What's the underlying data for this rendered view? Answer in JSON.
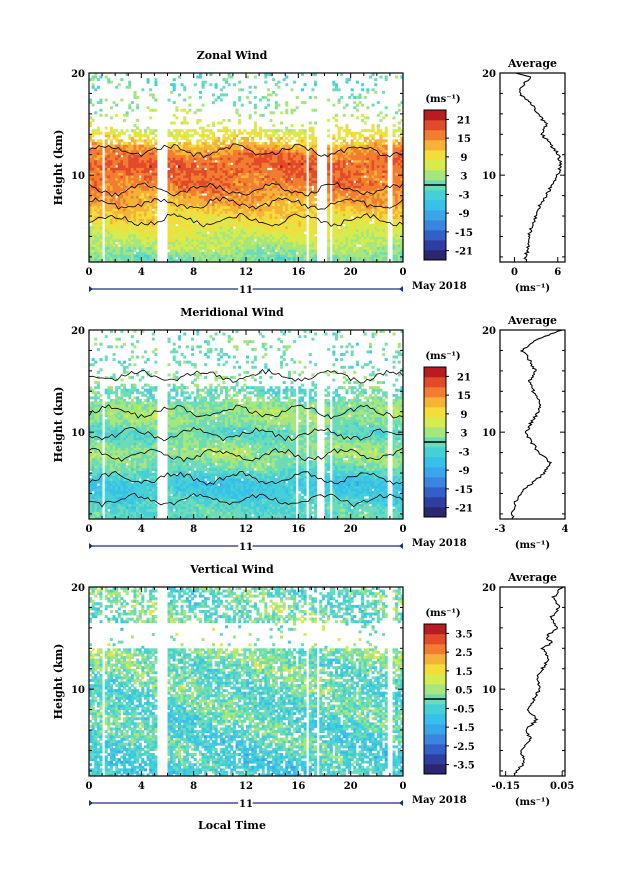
{
  "colors": {
    "colormap": [
      "#2b2670",
      "#2e3ea0",
      "#3360c8",
      "#3a86df",
      "#3aa6ea",
      "#36c0ea",
      "#45d0d8",
      "#6cdcb8",
      "#a6e67c",
      "#d6ec4e",
      "#f4dc3a",
      "#f6b236",
      "#f27d30",
      "#e34a2a",
      "#b81c20"
    ],
    "contour": "#000000",
    "axis": "#000000"
  },
  "chart_data": [
    {
      "type": "heatmap",
      "title": "Zonal Wind",
      "ylabel": "Height (km)",
      "xlabel": "",
      "x_ticks": [
        "0",
        "4",
        "8",
        "12",
        "16",
        "20",
        "0"
      ],
      "y_ticks": [
        "10",
        "20"
      ],
      "day_label": "11",
      "date_label": "May 2018",
      "ylim": [
        1.5,
        20
      ],
      "xlim": [
        0,
        24
      ],
      "colorbar": {
        "unit": "(ms⁻¹)",
        "ticks": [
          "21",
          "15",
          "9",
          "3",
          "-3",
          "-9",
          "-15",
          "-21"
        ],
        "range": [
          -24,
          24
        ]
      },
      "gaps": [
        [
          1.0,
          1.2
        ],
        [
          5.2,
          6.0
        ],
        [
          16.6,
          16.8
        ],
        [
          17.4,
          18.1
        ],
        [
          18.3,
          18.6
        ],
        [
          22.8,
          23.2
        ]
      ],
      "profile_points": [
        [
          2,
          1
        ],
        [
          3,
          4
        ],
        [
          4,
          6
        ],
        [
          5,
          8
        ],
        [
          6,
          10
        ],
        [
          7,
          12
        ],
        [
          8,
          14
        ],
        [
          9,
          16
        ],
        [
          10,
          17
        ],
        [
          11,
          18
        ],
        [
          12,
          16
        ],
        [
          13,
          12
        ],
        [
          14,
          8
        ],
        [
          15,
          6
        ],
        [
          16,
          4
        ],
        [
          17,
          2
        ],
        [
          18,
          1
        ],
        [
          19,
          -1
        ]
      ],
      "average": {
        "title": "Average",
        "xlabel": "(ms⁻¹)",
        "x_ticks": [
          "0",
          "6"
        ],
        "y_ticks": [
          "10",
          "20"
        ],
        "xlim": [
          -2,
          7
        ],
        "profile": [
          [
            1.5,
            1.5
          ],
          [
            2,
            1.6
          ],
          [
            3,
            1.9
          ],
          [
            4,
            2.0
          ],
          [
            5,
            2.4
          ],
          [
            6,
            3.0
          ],
          [
            7,
            3.4
          ],
          [
            8,
            4.4
          ],
          [
            9,
            5.2
          ],
          [
            10,
            6.0
          ],
          [
            11,
            6.4
          ],
          [
            12,
            6.1
          ],
          [
            13,
            5.0
          ],
          [
            14,
            3.8
          ],
          [
            15,
            4.4
          ],
          [
            16,
            3.2
          ],
          [
            17,
            2.4
          ],
          [
            18,
            0.6
          ],
          [
            19,
            1.4
          ],
          [
            19.6,
            2.2
          ],
          [
            20,
            0.4
          ]
        ]
      }
    },
    {
      "type": "heatmap",
      "title": "Meridional Wind",
      "ylabel": "Height (km)",
      "xlabel": "",
      "x_ticks": [
        "0",
        "4",
        "8",
        "12",
        "16",
        "20",
        "0"
      ],
      "y_ticks": [
        "10",
        "20"
      ],
      "day_label": "11",
      "date_label": "May 2018",
      "ylim": [
        1.5,
        20
      ],
      "xlim": [
        0,
        24
      ],
      "colorbar": {
        "unit": "(ms⁻¹)",
        "ticks": [
          "21",
          "15",
          "9",
          "3",
          "-3",
          "-9",
          "-15",
          "-21"
        ],
        "range": [
          -24,
          24
        ]
      },
      "gaps": [
        [
          1.0,
          1.2
        ],
        [
          5.2,
          6.0
        ],
        [
          15.7,
          15.9
        ],
        [
          16.6,
          16.8
        ],
        [
          17.4,
          18.0
        ],
        [
          18.3,
          18.6
        ],
        [
          22.8,
          23.2
        ]
      ],
      "profile_points": [
        [
          2,
          -1
        ],
        [
          3,
          -2
        ],
        [
          4,
          -4
        ],
        [
          5,
          -5
        ],
        [
          6,
          -2
        ],
        [
          7,
          1
        ],
        [
          8,
          3
        ],
        [
          9,
          1
        ],
        [
          10,
          -1
        ],
        [
          11,
          2
        ],
        [
          12,
          3
        ],
        [
          13,
          1
        ],
        [
          14,
          -1
        ],
        [
          15,
          2
        ],
        [
          16,
          1
        ],
        [
          17,
          -1
        ],
        [
          18,
          1
        ],
        [
          19,
          0
        ]
      ],
      "average": {
        "title": "Average",
        "xlabel": "(ms⁻¹)",
        "x_ticks": [
          "-3",
          "4"
        ],
        "y_ticks": [
          "10",
          "20"
        ],
        "xlim": [
          -3,
          4
        ],
        "profile": [
          [
            1.5,
            -1.6
          ],
          [
            2,
            -1.8
          ],
          [
            3,
            -1.4
          ],
          [
            4,
            -0.8
          ],
          [
            5,
            0.4
          ],
          [
            6,
            1.8
          ],
          [
            7,
            2.4
          ],
          [
            8,
            1.2
          ],
          [
            9,
            0.4
          ],
          [
            10,
            -0.2
          ],
          [
            11,
            0.4
          ],
          [
            12,
            1.2
          ],
          [
            13,
            1.4
          ],
          [
            14,
            0.6
          ],
          [
            15,
            0.2
          ],
          [
            16,
            0.8
          ],
          [
            17,
            0.2
          ],
          [
            18,
            -0.6
          ],
          [
            19,
            0.8
          ],
          [
            19.7,
            2.8
          ],
          [
            20,
            3.6
          ]
        ]
      }
    },
    {
      "type": "heatmap",
      "title": "Vertical Wind",
      "ylabel": "Height (km)",
      "xlabel": "Local Time",
      "x_ticks": [
        "0",
        "4",
        "8",
        "12",
        "16",
        "20",
        "0"
      ],
      "y_ticks": [
        "10",
        "20"
      ],
      "day_label": "11",
      "date_label": "May 2018",
      "ylim": [
        1.5,
        20
      ],
      "xlim": [
        0,
        24
      ],
      "colorbar": {
        "unit": "(ms⁻¹)",
        "ticks": [
          "3.5",
          "2.5",
          "1.5",
          "0.5",
          "-0.5",
          "-1.5",
          "-2.5",
          "-3.5"
        ],
        "range": [
          -4,
          4
        ]
      },
      "gaps": [
        [
          1.0,
          1.2
        ],
        [
          5.2,
          6.0
        ],
        [
          16.6,
          16.8
        ],
        [
          17.4,
          17.6
        ],
        [
          22.8,
          23.2
        ]
      ],
      "profile_points": [
        [
          2,
          -0.6
        ],
        [
          4,
          -0.4
        ],
        [
          6,
          -0.3
        ],
        [
          8,
          -0.2
        ],
        [
          10,
          -0.1
        ],
        [
          12,
          0.0
        ],
        [
          14,
          0.2
        ],
        [
          16,
          0.1
        ],
        [
          18,
          0.0
        ],
        [
          19,
          -0.1
        ]
      ],
      "average": {
        "title": "Average",
        "xlabel": "(ms⁻¹)",
        "x_ticks": [
          "-0.15",
          "0.05"
        ],
        "y_ticks": [
          "10",
          "20"
        ],
        "xlim": [
          -0.17,
          0.06
        ],
        "profile": [
          [
            1.5,
            -0.12
          ],
          [
            2,
            -0.11
          ],
          [
            3,
            -0.08
          ],
          [
            4,
            -0.1
          ],
          [
            5,
            -0.06
          ],
          [
            6,
            -0.08
          ],
          [
            7,
            -0.04
          ],
          [
            8,
            -0.07
          ],
          [
            9,
            -0.05
          ],
          [
            10,
            -0.03
          ],
          [
            11,
            -0.04
          ],
          [
            12,
            -0.02
          ],
          [
            13,
            0.0
          ],
          [
            14,
            -0.02
          ],
          [
            14.6,
            0.02
          ],
          [
            15,
            -0.01
          ],
          [
            16,
            0.03
          ],
          [
            17,
            0.01
          ],
          [
            18,
            0.04
          ],
          [
            19,
            0.02
          ],
          [
            20,
            0.05
          ]
        ]
      }
    }
  ]
}
